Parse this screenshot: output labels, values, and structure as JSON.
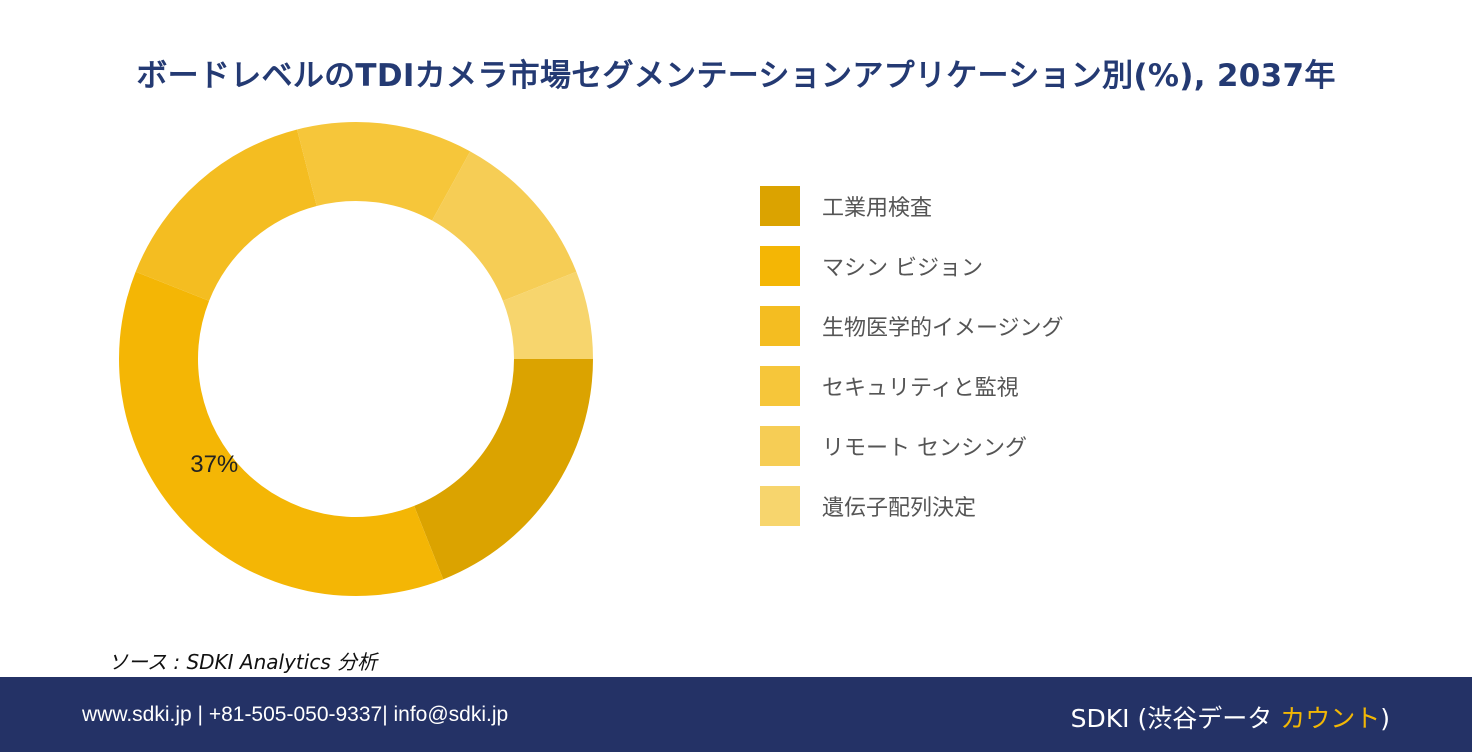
{
  "title": "ボードレベルのTDIカメラ市場セグメンテーションアプリケーション別(%), 2037年",
  "chart_data": {
    "type": "pie",
    "style": "donut",
    "title": "ボードレベルのTDIカメラ市場セグメンテーションアプリケーション別(%), 2037年",
    "legend_position": "right",
    "categories": [
      "工業用検査",
      "マシン ビジョン",
      "生物医学的イメージング",
      "セキュリティと監視",
      "リモート センシング",
      "遺伝子配列決定"
    ],
    "values": [
      19,
      37,
      15,
      12,
      11,
      6
    ],
    "colors": [
      "#dba300",
      "#f4b605",
      "#f4bd21",
      "#f6c63a",
      "#f6cd55",
      "#f7d56d"
    ],
    "data_labels": [
      "",
      "37%",
      "",
      "",
      "",
      ""
    ]
  },
  "source": "ソース : SDKI Analytics 分析",
  "footer": {
    "contact": "www.sdki.jp | +81-505-050-9337| info@sdki.jp",
    "brand_prefix": "SDKI (渋谷データ ",
    "brand_accent": "カウント",
    "brand_suffix": ")"
  }
}
